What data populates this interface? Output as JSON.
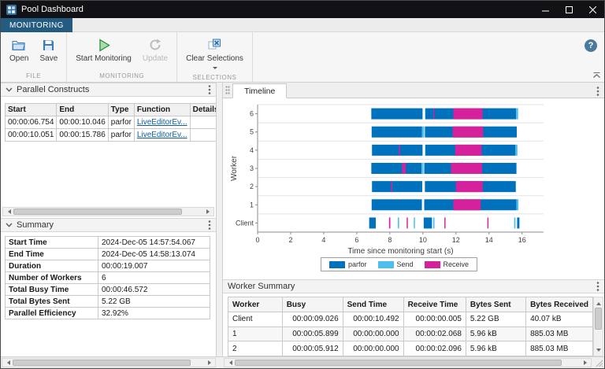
{
  "window": {
    "title": "Pool Dashboard"
  },
  "toolstrip": {
    "tab_label": "MONITORING",
    "help_label": "?",
    "groups": [
      {
        "label": "FILE",
        "buttons": [
          {
            "label": "Open"
          },
          {
            "label": "Save"
          }
        ]
      },
      {
        "label": "MONITORING",
        "buttons": [
          {
            "label": "Start Monitoring"
          },
          {
            "label": "Update"
          }
        ]
      },
      {
        "label": "SELECTIONS",
        "buttons": [
          {
            "label": "Clear Selections"
          }
        ]
      }
    ]
  },
  "constructs_panel": {
    "title": "Parallel Constructs",
    "columns": [
      "Start",
      "End",
      "Type",
      "Function",
      "Details"
    ],
    "rows": [
      {
        "start": "00:00:06.754",
        "end": "00:00:10.046",
        "type": "parfor",
        "function": "LiveEditorEv...",
        "details": ""
      },
      {
        "start": "00:00:10.051",
        "end": "00:00:15.786",
        "type": "parfor",
        "function": "LiveEditorEv...",
        "details": ""
      }
    ]
  },
  "summary_panel": {
    "title": "Summary",
    "rows": [
      {
        "label": "Start Time",
        "value": "2024-Dec-05 14:57:54.067"
      },
      {
        "label": "End Time",
        "value": "2024-Dec-05 14:58:13.074"
      },
      {
        "label": "Duration",
        "value": "00:00:19.007"
      },
      {
        "label": "Number of Workers",
        "value": "6"
      },
      {
        "label": "Total Busy Time",
        "value": "00:00:46.572"
      },
      {
        "label": "Total Bytes Sent",
        "value": "5.22 GB"
      },
      {
        "label": "Parallel Efficiency",
        "value": "32.92%"
      }
    ]
  },
  "timeline_panel": {
    "tab_label": "Timeline"
  },
  "chart_data": {
    "type": "timeline",
    "title": "",
    "xlabel": "Time since monitoring start (s)",
    "ylabel": "Worker",
    "xlim": [
      0,
      17.3
    ],
    "xticks": [
      0,
      2,
      4,
      6,
      8,
      10,
      12,
      14,
      16
    ],
    "rows": [
      "Client",
      "1",
      "2",
      "3",
      "4",
      "5",
      "6"
    ],
    "legend": [
      "parfor",
      "Send",
      "Receive"
    ],
    "colors": {
      "parfor": "#0072BD",
      "Send": "#4DBEEE",
      "Receive": "#D6219C"
    },
    "segments": [
      {
        "row": "6",
        "kind": "parfor",
        "t0": 6.88,
        "t1": 9.98
      },
      {
        "row": "6",
        "kind": "parfor",
        "t0": 10.14,
        "t1": 15.64
      },
      {
        "row": "6",
        "kind": "Send",
        "t0": 15.64,
        "t1": 15.76
      },
      {
        "row": "6",
        "kind": "Receive",
        "t0": 11.84,
        "t1": 13.61
      },
      {
        "row": "6",
        "kind": "Receive",
        "t0": 10.62,
        "t1": 10.68
      },
      {
        "row": "5",
        "kind": "parfor",
        "t0": 6.9,
        "t1": 9.95
      },
      {
        "row": "5",
        "kind": "parfor",
        "t0": 10.12,
        "t1": 15.68
      },
      {
        "row": "5",
        "kind": "Send",
        "t0": 9.95,
        "t1": 10.08
      },
      {
        "row": "5",
        "kind": "Receive",
        "t0": 11.8,
        "t1": 13.64
      },
      {
        "row": "4",
        "kind": "parfor",
        "t0": 6.92,
        "t1": 9.98
      },
      {
        "row": "4",
        "kind": "parfor",
        "t0": 10.14,
        "t1": 15.6
      },
      {
        "row": "4",
        "kind": "Send",
        "t0": 15.6,
        "t1": 15.72
      },
      {
        "row": "4",
        "kind": "Receive",
        "t0": 11.95,
        "t1": 13.55
      },
      {
        "row": "4",
        "kind": "Receive",
        "t0": 8.55,
        "t1": 8.62
      },
      {
        "row": "3",
        "kind": "parfor",
        "t0": 6.88,
        "t1": 9.92
      },
      {
        "row": "3",
        "kind": "parfor",
        "t0": 10.08,
        "t1": 15.66
      },
      {
        "row": "3",
        "kind": "Send",
        "t0": 9.92,
        "t1": 10.04
      },
      {
        "row": "3",
        "kind": "Receive",
        "t0": 8.74,
        "t1": 8.96
      },
      {
        "row": "3",
        "kind": "Receive",
        "t0": 11.7,
        "t1": 13.58
      },
      {
        "row": "2",
        "kind": "parfor",
        "t0": 6.92,
        "t1": 9.96
      },
      {
        "row": "2",
        "kind": "parfor",
        "t0": 10.12,
        "t1": 15.62
      },
      {
        "row": "2",
        "kind": "Receive",
        "t0": 12.0,
        "t1": 13.62
      },
      {
        "row": "2",
        "kind": "Receive",
        "t0": 8.08,
        "t1": 8.15
      },
      {
        "row": "1",
        "kind": "parfor",
        "t0": 6.9,
        "t1": 9.94
      },
      {
        "row": "1",
        "kind": "parfor",
        "t0": 10.08,
        "t1": 15.66
      },
      {
        "row": "1",
        "kind": "Receive",
        "t0": 11.84,
        "t1": 13.5
      },
      {
        "row": "1",
        "kind": "Send",
        "t0": 15.66,
        "t1": 15.78
      },
      {
        "row": "Client",
        "kind": "parfor",
        "t0": 6.75,
        "t1": 7.15
      },
      {
        "row": "Client",
        "kind": "Receive",
        "t0": 7.95,
        "t1": 8.03
      },
      {
        "row": "Client",
        "kind": "Send",
        "t0": 8.48,
        "t1": 8.56
      },
      {
        "row": "Client",
        "kind": "Receive",
        "t0": 9.02,
        "t1": 9.09
      },
      {
        "row": "Client",
        "kind": "Send",
        "t0": 9.45,
        "t1": 9.52
      },
      {
        "row": "Client",
        "kind": "parfor",
        "t0": 10.05,
        "t1": 10.55
      },
      {
        "row": "Client",
        "kind": "Send",
        "t0": 10.62,
        "t1": 10.7
      },
      {
        "row": "Client",
        "kind": "Receive",
        "t0": 11.3,
        "t1": 11.37
      },
      {
        "row": "Client",
        "kind": "Receive",
        "t0": 13.9,
        "t1": 13.97
      },
      {
        "row": "Client",
        "kind": "Send",
        "t0": 15.52,
        "t1": 15.6
      },
      {
        "row": "Client",
        "kind": "parfor",
        "t0": 15.7,
        "t1": 15.84
      }
    ]
  },
  "worker_summary": {
    "title": "Worker Summary",
    "columns": [
      "Worker",
      "Busy",
      "Send Time",
      "Receive Time",
      "Bytes Sent",
      "Bytes Received"
    ],
    "rows": [
      [
        "Client",
        "00:00:09.026",
        "00:00:10.492",
        "00:00:00.005",
        "5.22 GB",
        "40.07 kB"
      ],
      [
        "1",
        "00:00:05.899",
        "00:00:00.000",
        "00:00:02.068",
        "5.96 kB",
        "885.03 MB"
      ],
      [
        "2",
        "00:00:05.912",
        "00:00:00.000",
        "00:00:02.096",
        "5.96 kB",
        "885.03 MB"
      ]
    ]
  }
}
